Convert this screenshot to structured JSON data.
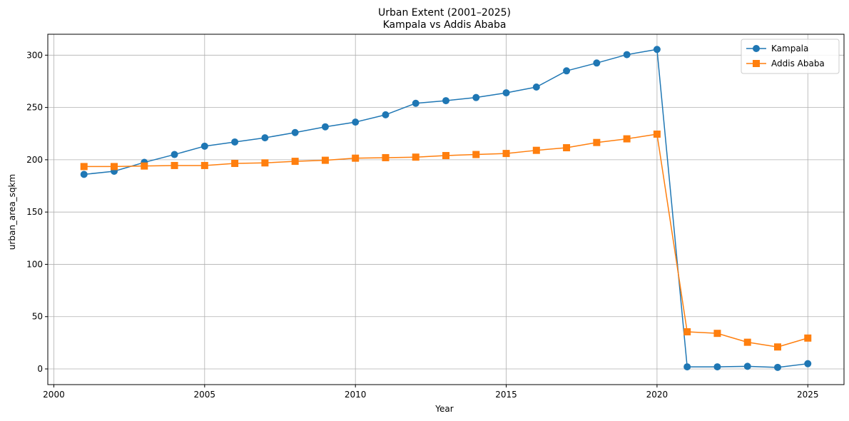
{
  "chart_data": {
    "type": "line",
    "title": "Urban Extent (2001–2025)",
    "subtitle": "Kampala vs Addis Ababa",
    "xlabel": "Year",
    "ylabel": "urban_area_sqkm",
    "xlim": [
      1999.8,
      2026.2
    ],
    "ylim": [
      -15,
      320
    ],
    "xticks": [
      2000,
      2005,
      2010,
      2015,
      2020,
      2025
    ],
    "yticks": [
      0,
      50,
      100,
      150,
      200,
      250,
      300
    ],
    "grid": true,
    "legend_position": "top-right",
    "x": [
      2001,
      2002,
      2003,
      2004,
      2005,
      2006,
      2007,
      2008,
      2009,
      2010,
      2011,
      2012,
      2013,
      2014,
      2015,
      2016,
      2017,
      2018,
      2019,
      2020,
      2021,
      2022,
      2023,
      2024,
      2025
    ],
    "series": [
      {
        "name": "Kampala",
        "color": "#1f77b4",
        "marker": "circle",
        "values": [
          186,
          189,
          197.5,
          205,
          213,
          217,
          221,
          226,
          231.5,
          236,
          243,
          254,
          256.5,
          259.5,
          264,
          269.5,
          285,
          292.5,
          300.5,
          305.5,
          2,
          2,
          2.5,
          1.5,
          5
        ]
      },
      {
        "name": "Addis Ababa",
        "color": "#ff7f0e",
        "marker": "square",
        "values": [
          193.5,
          193.5,
          194,
          194.5,
          194.5,
          196.5,
          197,
          198.5,
          199.5,
          201.5,
          202,
          202.5,
          204,
          205,
          206,
          209,
          211.5,
          216.5,
          220,
          224.5,
          35.5,
          34,
          25.5,
          21,
          29.5
        ]
      }
    ]
  }
}
